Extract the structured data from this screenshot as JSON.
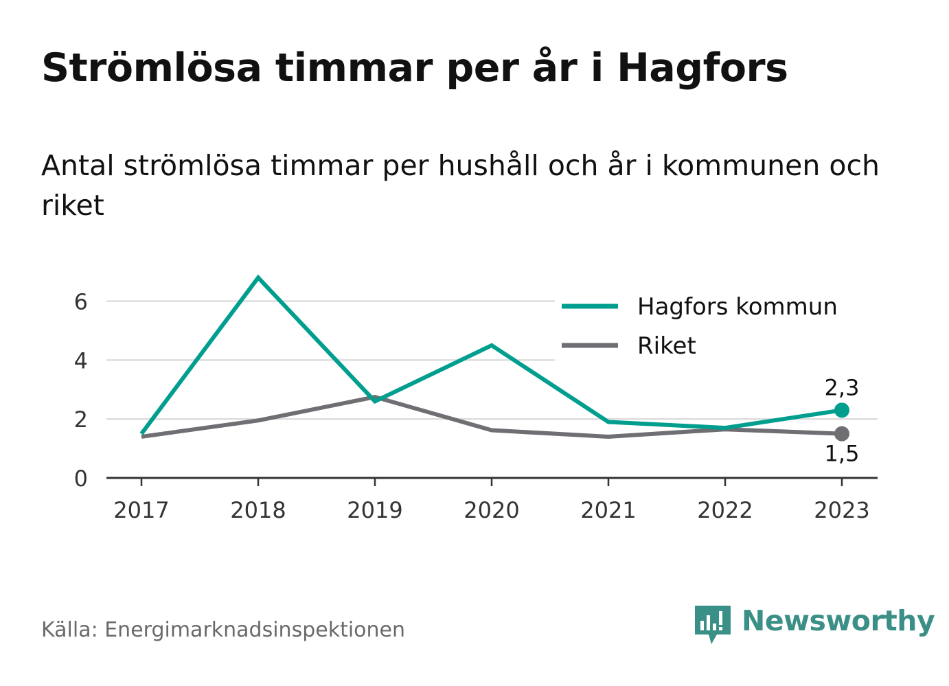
{
  "header": {
    "title": "Strömlösa timmar per år i Hagfors",
    "subtitle": "Antal strömlösa timmar per hushåll och år i kommunen och riket"
  },
  "footer": {
    "source": "Källa: Energimarknadsinspektionen",
    "brand": "Newsworthy"
  },
  "colors": {
    "hagfors": "#009e8e",
    "riket": "#6e6e73",
    "grid": "#dddddd",
    "axis": "#333333",
    "brand": "#3a8f86"
  },
  "chart_data": {
    "type": "line",
    "categories": [
      "2017",
      "2018",
      "2019",
      "2020",
      "2021",
      "2022",
      "2023"
    ],
    "y_ticks": [
      "0",
      "2",
      "4",
      "6"
    ],
    "ylim": [
      0,
      6.9
    ],
    "grid": true,
    "legend_position": "top-right",
    "series": [
      {
        "name": "Hagfors kommun",
        "values": [
          1.5,
          6.8,
          2.6,
          4.5,
          1.9,
          1.7,
          2.3
        ],
        "end_label": "2,3"
      },
      {
        "name": "Riket",
        "values": [
          1.4,
          1.95,
          2.75,
          1.62,
          1.4,
          1.65,
          1.5
        ],
        "end_label": "1,5"
      }
    ]
  }
}
